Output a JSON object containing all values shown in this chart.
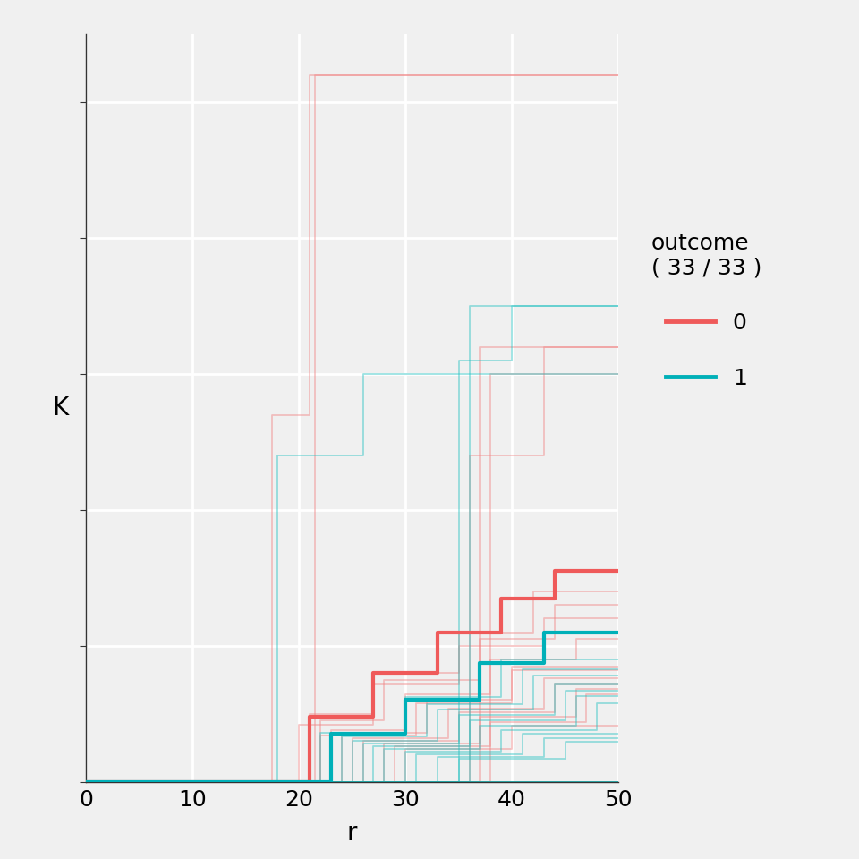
{
  "background_color": "#f0f0f0",
  "plot_bg_color": "#f0f0f0",
  "grid_color": "#ffffff",
  "axis_color": "#333333",
  "xlabel": "r",
  "ylabel": "K",
  "xlim": [
    0,
    50
  ],
  "ylim": [
    0,
    5500
  ],
  "xticks": [
    0,
    10,
    20,
    30,
    40,
    50
  ],
  "yticks": [
    0,
    1000,
    2000,
    3000,
    4000,
    5000
  ],
  "legend_title": "outcome\n( 33 / 33 )",
  "color_0": "#f08080",
  "color_1": "#20c0c0",
  "color_0_bold": "#ef5a5a",
  "color_1_bold": "#00b0b8",
  "alpha_thin": 0.45,
  "alpha_bold": 1.0,
  "lw_thin": 1.3,
  "lw_bold": 3.0,
  "thin_lines_0": [
    {
      "x": [
        0,
        21.5,
        21.5,
        50
      ],
      "y": [
        0,
        0,
        5200,
        5200
      ]
    },
    {
      "x": [
        0,
        17.5,
        17.5,
        21,
        21,
        50
      ],
      "y": [
        0,
        0,
        2700,
        2700,
        5200,
        5200
      ]
    },
    {
      "x": [
        0,
        37,
        37,
        50
      ],
      "y": [
        0,
        0,
        3200,
        3200
      ]
    },
    {
      "x": [
        0,
        38,
        38,
        50
      ],
      "y": [
        0,
        0,
        3000,
        3000
      ]
    },
    {
      "x": [
        0,
        36,
        36,
        43,
        43,
        50
      ],
      "y": [
        0,
        0,
        2400,
        2400,
        3200,
        3200
      ]
    },
    {
      "x": [
        0,
        21,
        21,
        27,
        27,
        35,
        35,
        42,
        42,
        50
      ],
      "y": [
        0,
        0,
        500,
        500,
        800,
        800,
        1100,
        1100,
        1400,
        1400
      ]
    },
    {
      "x": [
        0,
        22,
        22,
        28,
        28,
        37,
        37,
        44,
        44,
        50
      ],
      "y": [
        0,
        0,
        450,
        450,
        750,
        750,
        1050,
        1050,
        1300,
        1300
      ]
    },
    {
      "x": [
        0,
        20,
        20,
        27,
        27,
        35,
        35,
        43,
        43,
        50
      ],
      "y": [
        0,
        0,
        420,
        420,
        720,
        720,
        1000,
        1000,
        1200,
        1200
      ]
    },
    {
      "x": [
        0,
        23,
        23,
        30,
        30,
        38,
        38,
        46,
        46,
        50
      ],
      "y": [
        0,
        0,
        380,
        380,
        640,
        640,
        900,
        900,
        1050,
        1050
      ]
    },
    {
      "x": [
        0,
        24,
        24,
        32,
        32,
        40,
        40,
        50
      ],
      "y": [
        0,
        0,
        360,
        360,
        600,
        600,
        850,
        850
      ]
    },
    {
      "x": [
        0,
        22,
        22,
        31,
        31,
        40,
        40,
        50
      ],
      "y": [
        0,
        0,
        340,
        340,
        580,
        580,
        820,
        820
      ]
    },
    {
      "x": [
        0,
        25,
        25,
        34,
        34,
        43,
        43,
        50
      ],
      "y": [
        0,
        0,
        320,
        320,
        540,
        540,
        760,
        760
      ]
    },
    {
      "x": [
        0,
        26,
        26,
        35,
        35,
        44,
        44,
        50
      ],
      "y": [
        0,
        0,
        300,
        300,
        510,
        510,
        720,
        720
      ]
    },
    {
      "x": [
        0,
        28,
        28,
        37,
        37,
        46,
        46,
        50
      ],
      "y": [
        0,
        0,
        280,
        280,
        475,
        475,
        680,
        680
      ]
    },
    {
      "x": [
        0,
        29,
        29,
        38,
        38,
        47,
        47,
        50
      ],
      "y": [
        0,
        0,
        260,
        260,
        440,
        440,
        640,
        640
      ]
    },
    {
      "x": [
        0,
        30,
        30,
        40,
        40,
        50
      ],
      "y": [
        0,
        0,
        240,
        240,
        410,
        410
      ]
    },
    {
      "x": [
        0,
        50
      ],
      "y": [
        0,
        0
      ]
    },
    {
      "x": [
        0,
        50
      ],
      "y": [
        0,
        0
      ]
    },
    {
      "x": [
        0,
        50
      ],
      "y": [
        0,
        0
      ]
    }
  ],
  "bold_lines_0": [
    {
      "x": [
        0,
        21,
        21,
        27,
        27,
        33,
        33,
        39,
        39,
        44,
        44,
        50
      ],
      "y": [
        0,
        0,
        480,
        480,
        800,
        800,
        1100,
        1100,
        1350,
        1350,
        1550,
        1550
      ]
    }
  ],
  "thin_lines_1": [
    {
      "x": [
        0,
        35,
        35,
        40,
        40,
        50
      ],
      "y": [
        0,
        0,
        3100,
        3100,
        3500,
        3500
      ]
    },
    {
      "x": [
        0,
        36,
        36,
        50
      ],
      "y": [
        0,
        0,
        3500,
        3500
      ]
    },
    {
      "x": [
        0,
        18,
        18,
        26,
        26,
        50
      ],
      "y": [
        0,
        0,
        2400,
        2400,
        3000,
        3000
      ]
    },
    {
      "x": [
        0,
        22,
        22,
        30,
        30,
        39,
        39,
        50
      ],
      "y": [
        0,
        0,
        360,
        360,
        620,
        620,
        900,
        900
      ]
    },
    {
      "x": [
        0,
        24,
        24,
        32,
        32,
        41,
        41,
        50
      ],
      "y": [
        0,
        0,
        330,
        330,
        570,
        570,
        830,
        830
      ]
    },
    {
      "x": [
        0,
        25,
        25,
        33,
        33,
        42,
        42,
        50
      ],
      "y": [
        0,
        0,
        300,
        300,
        530,
        530,
        780,
        780
      ]
    },
    {
      "x": [
        0,
        26,
        26,
        35,
        35,
        44,
        44,
        50
      ],
      "y": [
        0,
        0,
        280,
        280,
        490,
        490,
        720,
        720
      ]
    },
    {
      "x": [
        0,
        27,
        27,
        36,
        36,
        45,
        45,
        50
      ],
      "y": [
        0,
        0,
        260,
        260,
        450,
        450,
        670,
        670
      ]
    },
    {
      "x": [
        0,
        28,
        28,
        37,
        37,
        46,
        46,
        50
      ],
      "y": [
        0,
        0,
        240,
        240,
        415,
        415,
        630,
        630
      ]
    },
    {
      "x": [
        0,
        30,
        30,
        39,
        39,
        48,
        48,
        50
      ],
      "y": [
        0,
        0,
        220,
        220,
        380,
        380,
        580,
        580
      ]
    },
    {
      "x": [
        0,
        31,
        31,
        41,
        41,
        50
      ],
      "y": [
        0,
        0,
        200,
        200,
        350,
        350
      ]
    },
    {
      "x": [
        0,
        33,
        33,
        43,
        43,
        50
      ],
      "y": [
        0,
        0,
        185,
        185,
        320,
        320
      ]
    },
    {
      "x": [
        0,
        35,
        35,
        45,
        45,
        50
      ],
      "y": [
        0,
        0,
        170,
        170,
        295,
        295
      ]
    },
    {
      "x": [
        0,
        50
      ],
      "y": [
        0,
        0
      ]
    },
    {
      "x": [
        0,
        50
      ],
      "y": [
        0,
        0
      ]
    },
    {
      "x": [
        0,
        50
      ],
      "y": [
        0,
        0
      ]
    },
    {
      "x": [
        0,
        50
      ],
      "y": [
        0,
        0
      ]
    },
    {
      "x": [
        0,
        50
      ],
      "y": [
        0,
        0
      ]
    }
  ],
  "bold_lines_1": [
    {
      "x": [
        0,
        23,
        23,
        30,
        30,
        37,
        37,
        43,
        43,
        50
      ],
      "y": [
        0,
        0,
        350,
        350,
        600,
        600,
        870,
        870,
        1100,
        1100
      ]
    }
  ]
}
